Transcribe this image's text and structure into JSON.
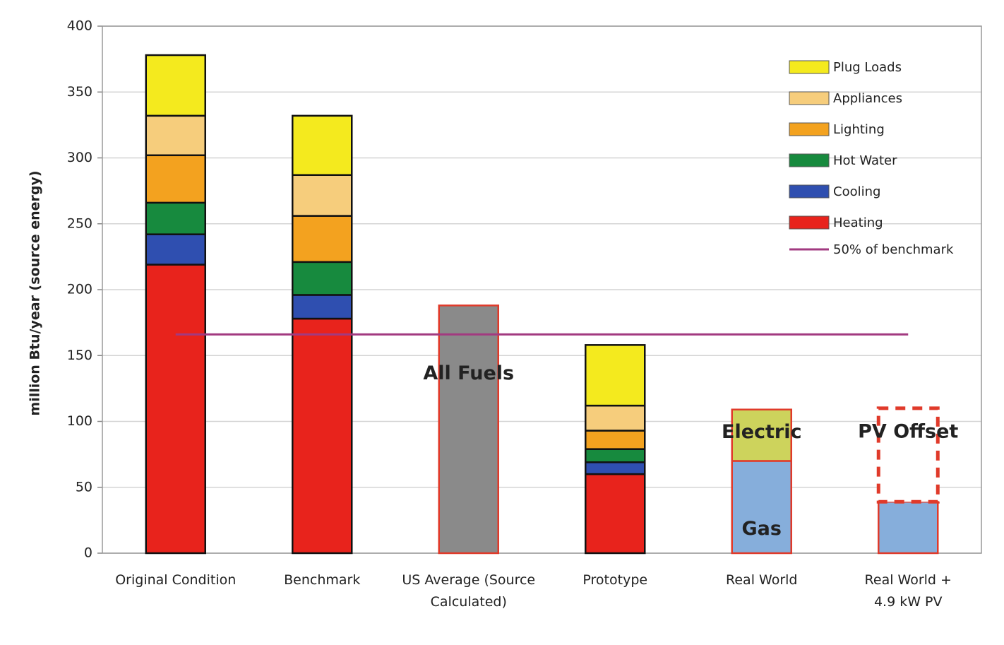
{
  "chart_data": {
    "type": "stacked_bar",
    "y_label": "million Btu/year (source energy)",
    "categories": [
      "Original Condition",
      "Benchmark",
      "US Average (Source Calculated)",
      "Prototype",
      "Real World",
      "Real World + 4.9 kW PV"
    ],
    "series": [
      {
        "name": "Heating",
        "color": "#e8231c",
        "values": [
          219,
          178,
          null,
          60,
          null,
          null
        ]
      },
      {
        "name": "Cooling",
        "color": "#2f4fb0",
        "values": [
          23,
          18,
          null,
          9,
          null,
          null
        ]
      },
      {
        "name": "Hot Water",
        "color": "#178a3e",
        "values": [
          24,
          25,
          null,
          10,
          null,
          null
        ]
      },
      {
        "name": "Lighting",
        "color": "#f3a21f",
        "values": [
          36,
          35,
          null,
          14,
          null,
          null
        ]
      },
      {
        "name": "Appliances",
        "color": "#f6cd7c",
        "values": [
          30,
          31,
          null,
          19,
          null,
          null
        ]
      },
      {
        "name": "Plug Loads",
        "color": "#f4ea1e",
        "values": [
          46,
          45,
          null,
          46,
          null,
          null
        ]
      }
    ],
    "labeled_segments": [
      {
        "name": "All Fuels",
        "color": "#8a8a8a",
        "values": [
          null,
          null,
          188,
          null,
          null,
          null
        ]
      },
      {
        "name": "Gas",
        "color": "#86aedb",
        "values": [
          null,
          null,
          null,
          null,
          70,
          39
        ]
      },
      {
        "name": "Electric",
        "color": "#cdd35c",
        "values": [
          null,
          null,
          null,
          null,
          39,
          null
        ]
      },
      {
        "name": "PV Offset",
        "color": "#ffffff",
        "dashed": true,
        "values": [
          null,
          null,
          null,
          null,
          null,
          71
        ]
      }
    ],
    "reference_line": {
      "name": "50% of benchmark",
      "value": 166,
      "color": "#a23a80"
    },
    "ylim": [
      0,
      400
    ],
    "yticks": [
      0,
      50,
      100,
      150,
      200,
      250,
      300,
      350,
      400
    ],
    "grid": true
  }
}
